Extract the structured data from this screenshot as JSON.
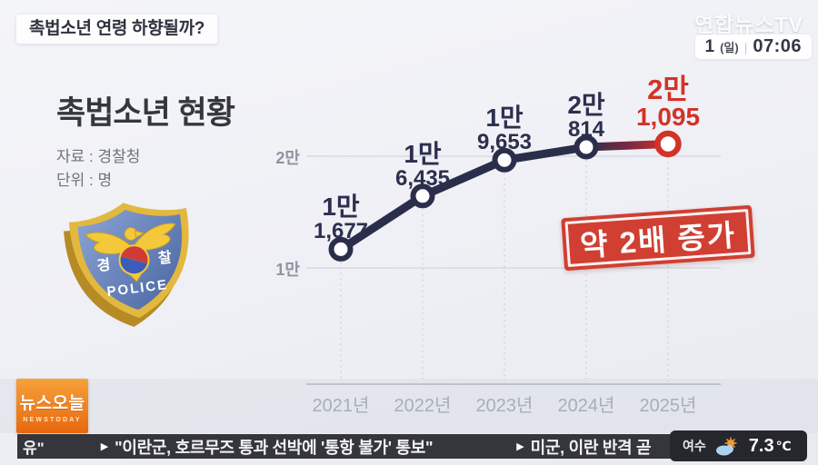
{
  "header": {
    "headline": "촉법소년 연령 하향될까?",
    "watermark": "연합뉴스TV",
    "clock": {
      "date": "1",
      "weekday": "(일)",
      "separator": "|",
      "time": "07:06"
    }
  },
  "badge": {
    "left": "경",
    "right": "찰",
    "caption": "POLICE"
  },
  "chart_data": {
    "type": "line",
    "title": "촉법소년 현황",
    "source": "자료 : 경찰청",
    "unit": "단위 : 명",
    "categories": [
      "2021년",
      "2022년",
      "2023년",
      "2024년",
      "2025년"
    ],
    "values": [
      11677,
      16435,
      19653,
      20814,
      21095
    ],
    "point_labels": [
      {
        "top": "1만",
        "bottom": "1,677"
      },
      {
        "top": "1만",
        "bottom": "6,435"
      },
      {
        "top": "1만",
        "bottom": "9,653"
      },
      {
        "top": "2만",
        "bottom": "814"
      },
      {
        "top": "2만",
        "bottom": "1,095"
      }
    ],
    "highlight_index": 4,
    "y_axis_ticks": [
      {
        "label": "1만",
        "value": 10000
      },
      {
        "label": "2만",
        "value": 20000
      }
    ],
    "ylim": [
      8600,
      22500
    ],
    "grid": true,
    "annotation": "약 2배 증가",
    "colors": {
      "line": "#2b2e4a",
      "highlight": "#d23328",
      "grid": "#d6d9e1",
      "axis_text": "#8e94a3"
    }
  },
  "footer": {
    "logo": {
      "kr": "뉴스오늘",
      "en": "NEWSTODAY"
    },
    "ticker": {
      "fragment": "유\"",
      "arrow": "▶",
      "item1": "\"이란군, 호르무즈 통과 선박에 '통항 불가' 통보\"",
      "item2": "미군, 이란 반격 곧"
    },
    "weather": {
      "city": "여수",
      "temp": "7.3",
      "unit": "℃"
    }
  }
}
